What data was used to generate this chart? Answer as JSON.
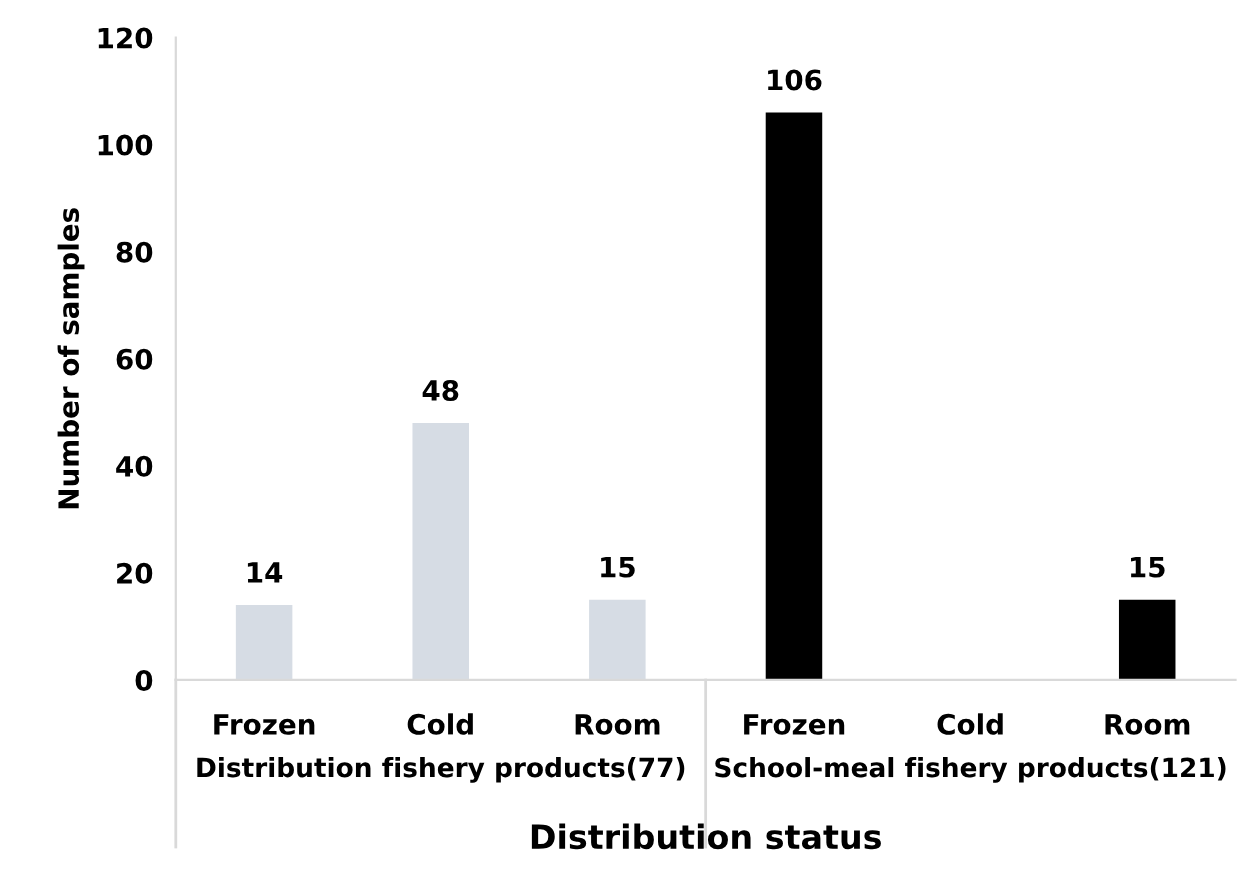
{
  "chart_data": {
    "type": "bar",
    "xlabel": "Distribution status",
    "ylabel": "Number of samples",
    "categories": [
      "Frozen",
      "Cold",
      "Room",
      "Frozen",
      "Cold",
      "Room"
    ],
    "values": [
      14,
      48,
      15,
      106,
      0,
      15
    ],
    "colors": [
      "#d6dce4",
      "#d6dce4",
      "#d6dce4",
      "#000000",
      "#000000",
      "#000000"
    ],
    "value_labels": [
      "14",
      "48",
      "15",
      "106",
      null,
      "15"
    ],
    "annotations": [
      "Distribution fishery products(77)",
      "School-meal fishery products(121)"
    ],
    "ylim": [
      0,
      120
    ],
    "yticks": [
      0,
      20,
      40,
      60,
      80,
      100,
      120
    ],
    "grid": false,
    "legend": false
  }
}
